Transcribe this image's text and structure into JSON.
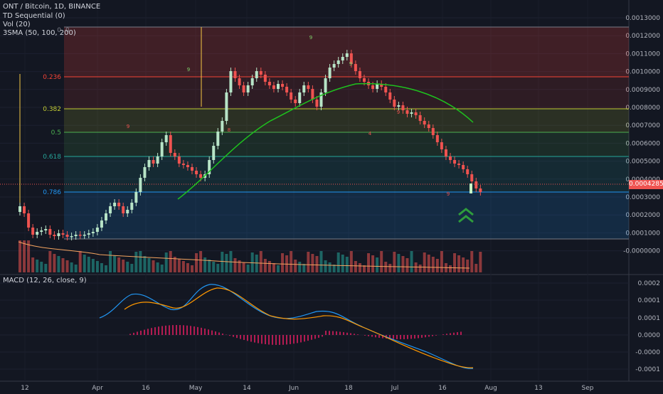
{
  "legend": {
    "title": "ONT / Bitcoin, 1D, BINANCE",
    "td_sequential": "TD Sequential (0)",
    "vol": "Vol (20)",
    "sma": "3SMA (50, 100, 200)",
    "macd": "MACD (12, 26, close, 9)"
  },
  "price_label": "0.0004285",
  "price_ticks": [
    "0.0013000",
    "0.0012000",
    "0.0011000",
    "0.0010000",
    "0.0009000",
    "0.0008000",
    "0.0007000",
    "0.0006000",
    "0.0005000",
    "0.0004000",
    "0.0003000",
    "0.0002000",
    "0.0001000",
    "-0.0000000"
  ],
  "macd_ticks": [
    "0.0002",
    "0.0001",
    "0.0001",
    "0.0000",
    "-0.0000",
    "-0.0001"
  ],
  "x_ticks": [
    "12",
    "Apr",
    "16",
    "May",
    "14",
    "Jun",
    "18",
    "Jul",
    "16",
    "Aug",
    "13",
    "Sep"
  ],
  "fib_levels": [
    {
      "label": "0.236",
      "value": "0.236",
      "color": "#f44336"
    },
    {
      "label": "0.382",
      "value": "0.382",
      "color": "#c0ca33"
    },
    {
      "label": "0.5",
      "value": "0.5",
      "color": "#4caf50"
    },
    {
      "label": "0.618",
      "value": "0.618",
      "color": "#26a69a"
    },
    {
      "label": "0.786",
      "value": "0.786",
      "color": "#2196f3"
    }
  ],
  "colors": {
    "up": "#b7e4c7",
    "down": "#ef5350",
    "sma": "#1ec21e",
    "macd_line": "#2196f3",
    "signal_line": "#ff9800",
    "hist": "#e91e63",
    "arrow": "#2e9d3c"
  },
  "icons": [
    "double-chevron-up-icon"
  ]
}
